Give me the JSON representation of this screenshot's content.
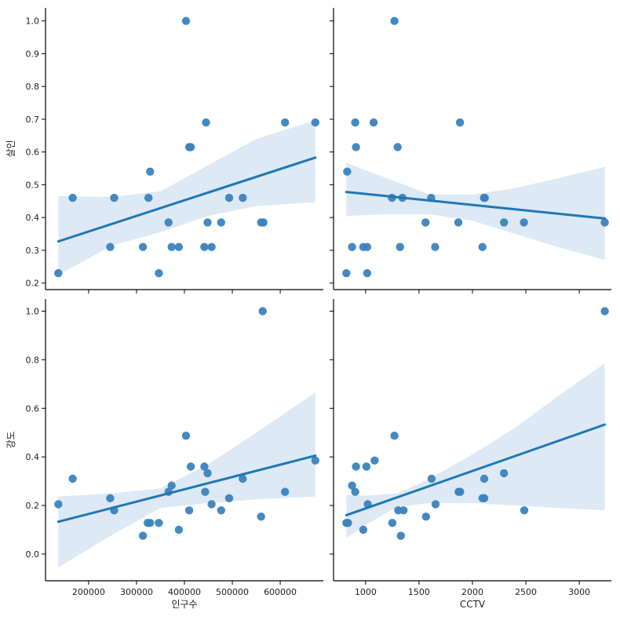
{
  "chart_data": [
    {
      "type": "scatter",
      "panel": "top-left",
      "xlabel": "",
      "ylabel": "살인",
      "xlim": [
        110000,
        690000
      ],
      "ylim": [
        0.18,
        1.04
      ],
      "xticks": [
        200000,
        300000,
        400000,
        500000,
        600000
      ],
      "yticks": [
        0.2,
        0.3,
        0.4,
        0.5,
        0.6,
        0.7,
        0.8,
        0.9,
        1.0
      ],
      "show_xtick_labels": false,
      "show_ytick_labels": true,
      "points": [
        [
          136667,
          0.23
        ],
        [
          166667,
          0.46
        ],
        [
          245000,
          0.31
        ],
        [
          253333,
          0.46
        ],
        [
          313333,
          0.31
        ],
        [
          325000,
          0.46
        ],
        [
          328333,
          0.54
        ],
        [
          346667,
          0.23
        ],
        [
          366667,
          0.385
        ],
        [
          373333,
          0.31
        ],
        [
          388333,
          0.31
        ],
        [
          403333,
          1.0
        ],
        [
          410000,
          0.615
        ],
        [
          413333,
          0.615
        ],
        [
          441667,
          0.31
        ],
        [
          445000,
          0.69
        ],
        [
          448333,
          0.385
        ],
        [
          456667,
          0.31
        ],
        [
          476667,
          0.385
        ],
        [
          493333,
          0.46
        ],
        [
          521667,
          0.46
        ],
        [
          560000,
          0.385
        ],
        [
          565000,
          0.385
        ],
        [
          610000,
          0.69
        ],
        [
          673333,
          0.69
        ]
      ],
      "regression": {
        "x": [
          136667,
          673333
        ],
        "y": [
          0.327,
          0.583
        ]
      },
      "ci_band": {
        "x": [
          136667,
          250000,
          350000,
          450000,
          550000,
          673333
        ],
        "lower": [
          0.225,
          0.315,
          0.355,
          0.405,
          0.435,
          0.447
        ],
        "upper": [
          0.465,
          0.463,
          0.48,
          0.56,
          0.64,
          0.697
        ]
      }
    },
    {
      "type": "scatter",
      "panel": "top-right",
      "xlabel": "",
      "ylabel": "",
      "xlim": [
        700,
        3300
      ],
      "ylim": [
        0.18,
        1.04
      ],
      "xticks": [
        1000,
        1500,
        2000,
        2500,
        3000
      ],
      "yticks": [
        0.2,
        0.3,
        0.4,
        0.5,
        0.6,
        0.7,
        0.8,
        0.9,
        1.0
      ],
      "show_xtick_labels": false,
      "show_ytick_labels": false,
      "points": [
        [
          820,
          0.23
        ],
        [
          1015,
          0.23
        ],
        [
          828,
          0.54
        ],
        [
          873,
          0.31
        ],
        [
          903,
          0.69
        ],
        [
          910,
          0.615
        ],
        [
          978,
          0.31
        ],
        [
          1015,
          0.31
        ],
        [
          1075,
          0.69
        ],
        [
          1247,
          0.46
        ],
        [
          1270,
          1.0
        ],
        [
          1300,
          0.615
        ],
        [
          1322,
          0.31
        ],
        [
          1345,
          0.46
        ],
        [
          1561,
          0.385
        ],
        [
          1614,
          0.46
        ],
        [
          1651,
          0.31
        ],
        [
          1868,
          0.385
        ],
        [
          1883,
          0.69
        ],
        [
          2093,
          0.31
        ],
        [
          2108,
          0.46
        ],
        [
          2115,
          0.46
        ],
        [
          2295,
          0.385
        ],
        [
          2482,
          0.385
        ],
        [
          3238,
          0.385
        ]
      ],
      "regression": {
        "x": [
          820,
          3238
        ],
        "y": [
          0.478,
          0.397
        ]
      },
      "ci_band": {
        "x": [
          820,
          1200,
          1600,
          2000,
          2400,
          2800,
          3238
        ],
        "lower": [
          0.405,
          0.41,
          0.41,
          0.39,
          0.35,
          0.31,
          0.27
        ],
        "upper": [
          0.567,
          0.52,
          0.47,
          0.47,
          0.49,
          0.52,
          0.555
        ]
      }
    },
    {
      "type": "scatter",
      "panel": "bottom-left",
      "xlabel": "인구수",
      "ylabel": "강도",
      "xlim": [
        110000,
        690000
      ],
      "ylim": [
        -0.11,
        1.05
      ],
      "xticks": [
        200000,
        300000,
        400000,
        500000,
        600000
      ],
      "yticks": [
        0.0,
        0.2,
        0.4,
        0.6,
        0.8,
        1.0
      ],
      "show_xtick_labels": true,
      "show_ytick_labels": true,
      "points": [
        [
          136667,
          0.205
        ],
        [
          166667,
          0.31
        ],
        [
          245000,
          0.23
        ],
        [
          253333,
          0.18
        ],
        [
          313333,
          0.075
        ],
        [
          323333,
          0.128
        ],
        [
          328333,
          0.128
        ],
        [
          346667,
          0.128
        ],
        [
          366667,
          0.256
        ],
        [
          373333,
          0.282
        ],
        [
          388333,
          0.1
        ],
        [
          403333,
          0.487
        ],
        [
          410000,
          0.18
        ],
        [
          413333,
          0.36
        ],
        [
          441667,
          0.36
        ],
        [
          443333,
          0.256
        ],
        [
          448333,
          0.333
        ],
        [
          456667,
          0.205
        ],
        [
          476667,
          0.18
        ],
        [
          493333,
          0.23
        ],
        [
          521667,
          0.31
        ],
        [
          560000,
          0.154
        ],
        [
          563333,
          1.0
        ],
        [
          610000,
          0.256
        ],
        [
          673333,
          0.385
        ]
      ],
      "regression": {
        "x": [
          136667,
          673333
        ],
        "y": [
          0.133,
          0.405
        ]
      },
      "ci_band": {
        "x": [
          136667,
          250000,
          350000,
          450000,
          550000,
          673333
        ],
        "lower": [
          -0.055,
          0.08,
          0.19,
          0.21,
          0.225,
          0.237
        ],
        "upper": [
          0.237,
          0.25,
          0.27,
          0.37,
          0.5,
          0.665
        ]
      }
    },
    {
      "type": "scatter",
      "panel": "bottom-right",
      "xlabel": "CCTV",
      "ylabel": "",
      "xlim": [
        700,
        3300
      ],
      "ylim": [
        -0.11,
        1.05
      ],
      "xticks": [
        1000,
        1500,
        2000,
        2500,
        3000
      ],
      "yticks": [
        0.0,
        0.2,
        0.4,
        0.6,
        0.8,
        1.0
      ],
      "show_xtick_labels": true,
      "show_ytick_labels": false,
      "points": [
        [
          820,
          0.128
        ],
        [
          835,
          0.128
        ],
        [
          873,
          0.282
        ],
        [
          903,
          0.256
        ],
        [
          910,
          0.36
        ],
        [
          978,
          0.1
        ],
        [
          1008,
          0.36
        ],
        [
          1020,
          0.205
        ],
        [
          1085,
          0.385
        ],
        [
          1250,
          0.128
        ],
        [
          1270,
          0.487
        ],
        [
          1305,
          0.18
        ],
        [
          1330,
          0.075
        ],
        [
          1355,
          0.18
        ],
        [
          1565,
          0.154
        ],
        [
          1617,
          0.31
        ],
        [
          1655,
          0.205
        ],
        [
          1870,
          0.256
        ],
        [
          1885,
          0.256
        ],
        [
          2095,
          0.23
        ],
        [
          2110,
          0.23
        ],
        [
          2110,
          0.31
        ],
        [
          2295,
          0.333
        ],
        [
          2485,
          0.18
        ],
        [
          3238,
          1.0
        ]
      ],
      "regression": {
        "x": [
          820,
          3238
        ],
        "y": [
          0.16,
          0.533
        ]
      },
      "ci_band": {
        "x": [
          820,
          1000,
          1300,
          1600,
          2000,
          2400,
          2800,
          3238
        ],
        "lower": [
          0.065,
          0.12,
          0.195,
          0.21,
          0.21,
          0.2,
          0.19,
          0.18
        ],
        "upper": [
          0.245,
          0.24,
          0.25,
          0.31,
          0.41,
          0.52,
          0.65,
          0.785
        ]
      }
    }
  ],
  "colors": {
    "point": "#3a83be",
    "line": "#1f77b4",
    "band": "#dde9f4",
    "axis": "#000000"
  }
}
